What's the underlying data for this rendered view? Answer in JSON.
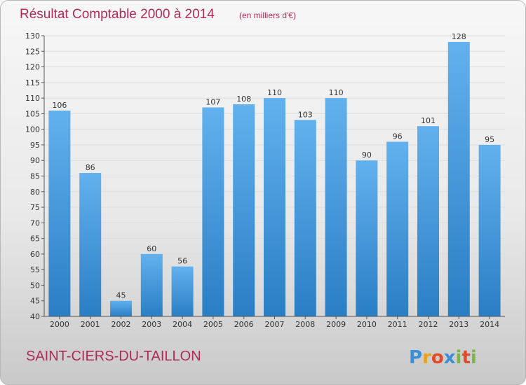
{
  "chart_data": {
    "type": "bar",
    "title": "Résultat Comptable 2000 à 2014",
    "subtitle": "(en milliers d'€)",
    "categories": [
      "2000",
      "2001",
      "2002",
      "2003",
      "2004",
      "2005",
      "2006",
      "2007",
      "2008",
      "2009",
      "2010",
      "2011",
      "2012",
      "2013",
      "2014"
    ],
    "values": [
      106,
      86,
      45,
      60,
      56,
      107,
      108,
      110,
      103,
      110,
      90,
      96,
      101,
      128,
      95
    ],
    "ylim": [
      40,
      130
    ],
    "yticks": [
      40,
      45,
      50,
      55,
      60,
      65,
      70,
      75,
      80,
      85,
      90,
      95,
      100,
      105,
      110,
      115,
      120,
      125,
      130
    ],
    "xlabel": "",
    "ylabel": "",
    "grid": true,
    "bar_color": "#4a9fe0"
  },
  "commune": "SAINT-CIERS-DU-TAILLON",
  "logo": {
    "letters": [
      "P",
      "r",
      "o",
      "x",
      "i",
      "t",
      "i"
    ],
    "colors": [
      "#3a8fd8",
      "#e8a21c",
      "#e24a2a",
      "#3a8fd8",
      "#7ab648",
      "#e24a2a",
      "#7ab648"
    ]
  }
}
